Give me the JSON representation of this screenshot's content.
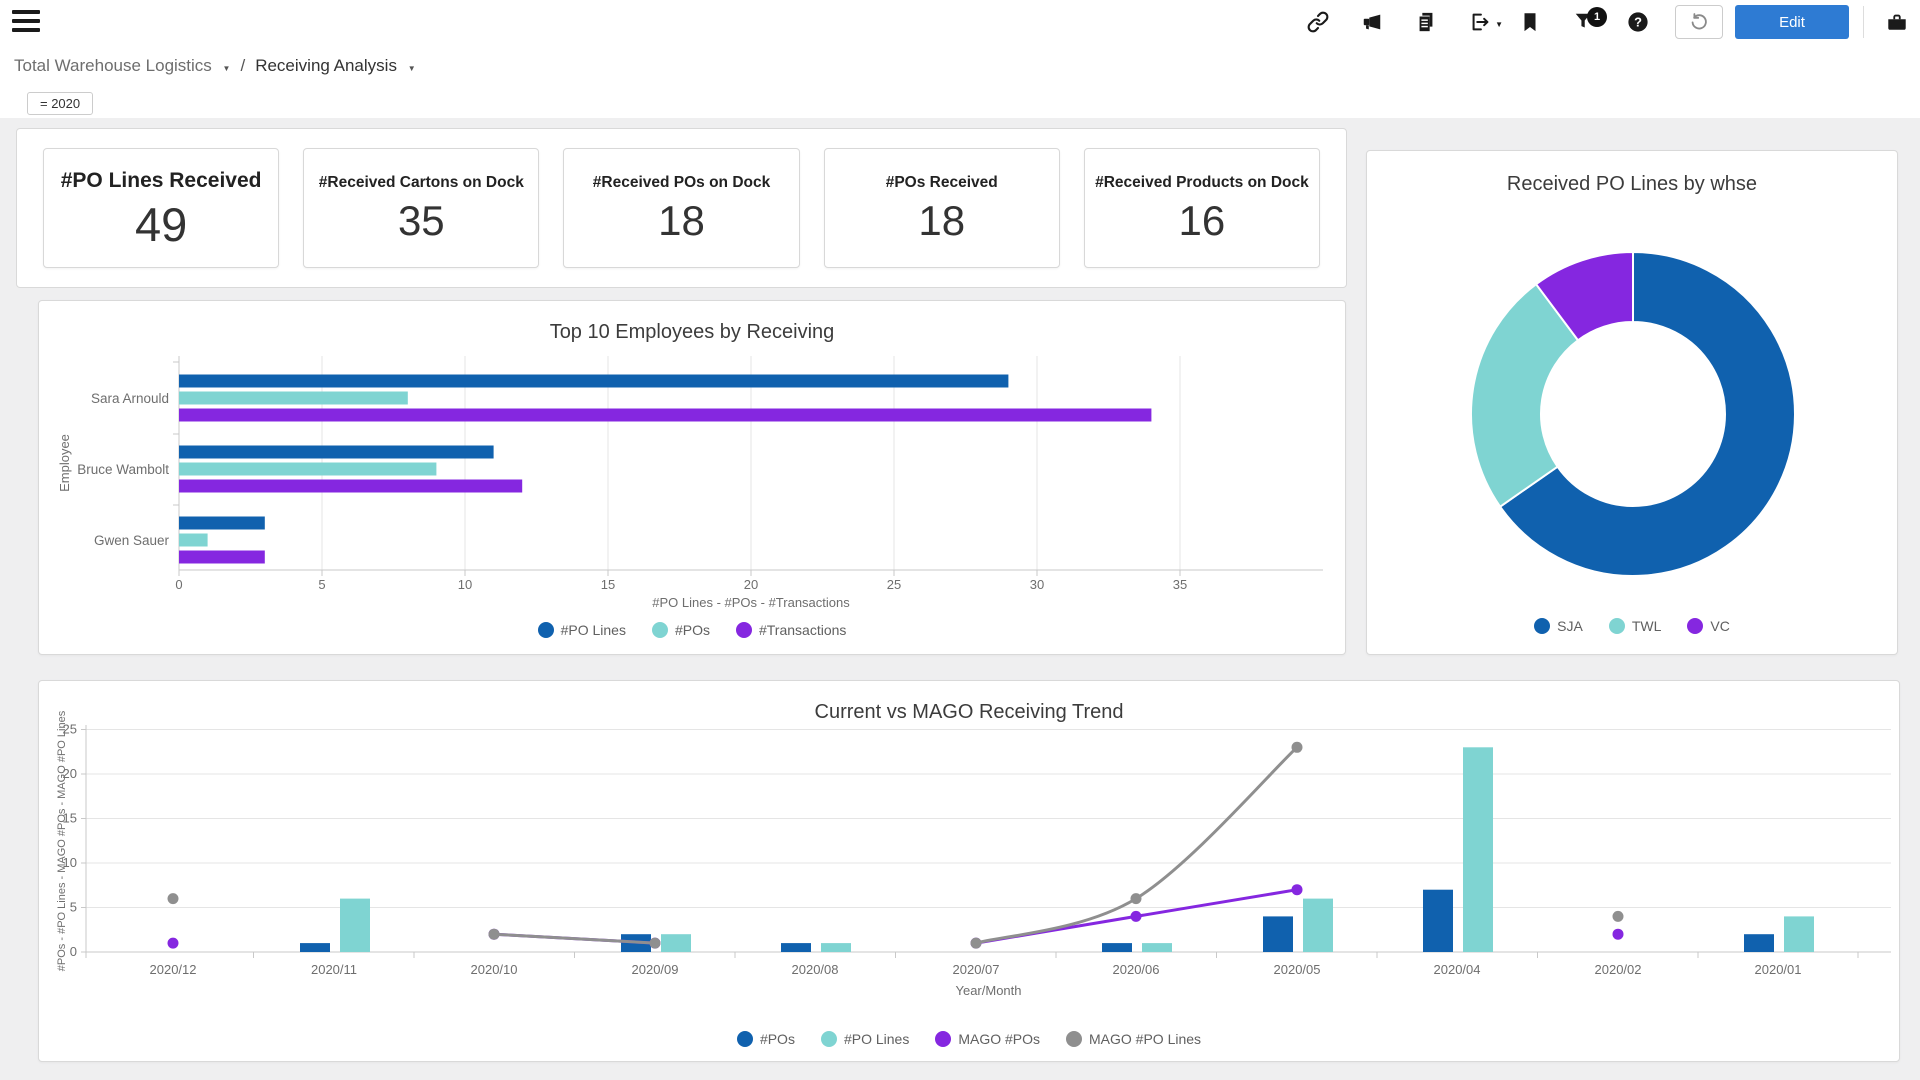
{
  "topbar": {
    "edit_label": "Edit",
    "filter_badge": "1",
    "icons": [
      "link",
      "announce",
      "copy",
      "export",
      "bookmark",
      "filter",
      "help",
      "undo",
      "briefcase"
    ]
  },
  "breadcrumb": {
    "dashboard": "Total Warehouse Logistics",
    "separator": "/",
    "page": "Receiving Analysis"
  },
  "filter_chip": "= 2020",
  "kpis": [
    {
      "title": "#PO Lines Received",
      "value": "49",
      "primary": true
    },
    {
      "title": "#Received Cartons on Dock",
      "value": "35",
      "primary": false
    },
    {
      "title": "#Received POs on Dock",
      "value": "18",
      "primary": false
    },
    {
      "title": "#POs Received",
      "value": "18",
      "primary": false
    },
    {
      "title": "#Received Products on Dock",
      "value": "16",
      "primary": false
    }
  ],
  "colors": {
    "blue": "#1061ae",
    "teal": "#7fd4d2",
    "purple": "#8527e0",
    "gray": "#8f8f8f",
    "accent": "#2e7bd3",
    "grid": "#e5e5e5",
    "axis": "#c9c9c9",
    "axis_text": "#6e6e6e"
  },
  "chart_data": [
    {
      "id": "employees",
      "type": "bar",
      "orientation": "horizontal",
      "title": "Top 10 Employees by Receiving",
      "ylabel": "Employee",
      "xlabel": "#PO Lines  -  #POs  -  #Transactions",
      "categories": [
        "Sara Arnould",
        "Bruce Wambolt",
        "Gwen Sauer"
      ],
      "series": [
        {
          "name": "#PO Lines",
          "color": "#1061ae",
          "values": [
            29,
            11,
            3
          ]
        },
        {
          "name": "#POs",
          "color": "#7fd4d2",
          "values": [
            8,
            9,
            1
          ]
        },
        {
          "name": "#Transactions",
          "color": "#8527e0",
          "values": [
            34,
            12,
            3
          ]
        }
      ],
      "xlim": [
        0,
        40
      ],
      "xticks": [
        0,
        5,
        10,
        15,
        20,
        25,
        30,
        35
      ],
      "grid": true,
      "legend_position": "bottom"
    },
    {
      "id": "warehouse",
      "type": "pie",
      "donut": true,
      "title": "Received PO Lines by whse",
      "labels": [
        "SJA",
        "TWL",
        "VC"
      ],
      "values": [
        32,
        12,
        5
      ],
      "colors": [
        "#1061ae",
        "#7fd4d2",
        "#8527e0"
      ],
      "legend_position": "bottom"
    },
    {
      "id": "trend",
      "type": "bar",
      "subtype": "combo-bar-line",
      "title": "Current vs MAGO Receiving Trend",
      "xlabel": "Year/Month",
      "ylabel": "#POs  -  #PO Lines  -  MAGO #POs  -  MAGO #PO Lines",
      "categories": [
        "2020/12",
        "2020/11",
        "2020/10",
        "2020/09",
        "2020/08",
        "2020/07",
        "2020/06",
        "2020/05",
        "2020/04",
        "2020/02",
        "2020/01"
      ],
      "series": [
        {
          "name": "#POs",
          "render": "bar",
          "color": "#1061ae",
          "values": [
            null,
            1,
            null,
            2,
            1,
            null,
            1,
            4,
            7,
            null,
            2
          ]
        },
        {
          "name": "#PO Lines",
          "render": "bar",
          "color": "#7fd4d2",
          "values": [
            null,
            6,
            null,
            2,
            1,
            null,
            1,
            6,
            23,
            null,
            4
          ]
        },
        {
          "name": "MAGO #POs",
          "render": "line",
          "color": "#8527e0",
          "values": [
            1,
            null,
            2,
            1,
            null,
            1,
            4,
            7,
            null,
            2,
            null
          ]
        },
        {
          "name": "MAGO #PO Lines",
          "render": "line",
          "color": "#8f8f8f",
          "values": [
            6,
            null,
            2,
            1,
            null,
            1,
            6,
            23,
            null,
            4,
            null
          ]
        }
      ],
      "ylim": [
        0,
        25
      ],
      "yticks": [
        0,
        5,
        10,
        15,
        20,
        25
      ],
      "grid": true,
      "legend_position": "bottom"
    }
  ]
}
